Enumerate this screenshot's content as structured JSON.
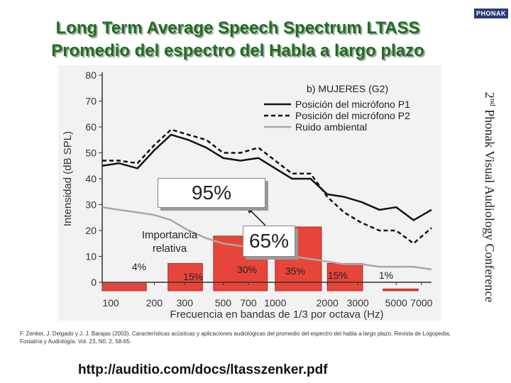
{
  "slide": {
    "title_line1": "Long Term Average Speech Spectrum LTASS",
    "title_line2": "Promedio del espectro del Habla a largo plazo",
    "logo_text": "PHONAK",
    "side_sup": "nd",
    "side_num": "2",
    "side_text": "Phonak Visual Audiology Conference",
    "citation": "F. Zenker, J. Delgado y J. J. Barajas (2003). Características acústicas y aplicaciones audiológicas del promedio del espectro del habla a largo plazo. Revista de Logopedia, Foniatría y Audiología. Vol. 23, N0. 2, 58-65.",
    "url": "http://auditio.com/docs/ltasszenker.pdf"
  },
  "callouts": {
    "box95": "95%",
    "box65": "65%",
    "importance": "Importancia relativa",
    "band_pcts": [
      "4%",
      "15%",
      "30%",
      "35%",
      "15%",
      "1%"
    ]
  },
  "colors": {
    "title": "#1f6e1f",
    "bars": "#e8453a",
    "noise": "#a8a8a8",
    "p1": "#111111",
    "p2": "#111111"
  },
  "chart_data": {
    "type": "line",
    "title": "b) MUJERES (G2)",
    "xlabel": "Frecuencia en bandas de 1/3 por octava (Hz)",
    "ylabel": "Intensidad (dB SPL)",
    "ylim": [
      0,
      80
    ],
    "yticks": [
      0,
      10,
      20,
      30,
      40,
      50,
      60,
      70,
      80
    ],
    "xtick_labels": [
      "100",
      "200",
      "300",
      "500",
      "700",
      "1000",
      "2000",
      "3000",
      "5000",
      "7000"
    ],
    "x": [
      100,
      125,
      160,
      200,
      250,
      315,
      400,
      500,
      630,
      800,
      1000,
      1250,
      1600,
      2000,
      2500,
      3150,
      4000,
      5000,
      6300,
      8000
    ],
    "series": [
      {
        "name": "Posición del micrófono P1",
        "style": "solid",
        "values": [
          45,
          46,
          44,
          51,
          57,
          55,
          52,
          48,
          47,
          48,
          44,
          40,
          40,
          34,
          33,
          31,
          28,
          29,
          24,
          28
        ]
      },
      {
        "name": "Posición del micrófono P2",
        "style": "dashed",
        "values": [
          47,
          47,
          46,
          53,
          59,
          57,
          55,
          50,
          50,
          52,
          47,
          42,
          42,
          33,
          27,
          23,
          20,
          20,
          15,
          21
        ]
      },
      {
        "name": "Ruido ambiental",
        "style": "solid-gray",
        "values": [
          29,
          28,
          27,
          26,
          24,
          20,
          17,
          15,
          14,
          13,
          11,
          10,
          9,
          8,
          7,
          7,
          6,
          6,
          6,
          5
        ]
      }
    ],
    "bars": {
      "name": "Importancia relativa",
      "values": [
        4,
        15,
        30,
        35,
        15,
        1
      ],
      "x_ranges": [
        [
          100,
          180
        ],
        [
          240,
          380
        ],
        [
          440,
          900
        ],
        [
          1000,
          1850
        ],
        [
          2000,
          3200
        ],
        [
          4200,
          6700
        ]
      ]
    },
    "legend_position": "top-right",
    "grid": false
  }
}
